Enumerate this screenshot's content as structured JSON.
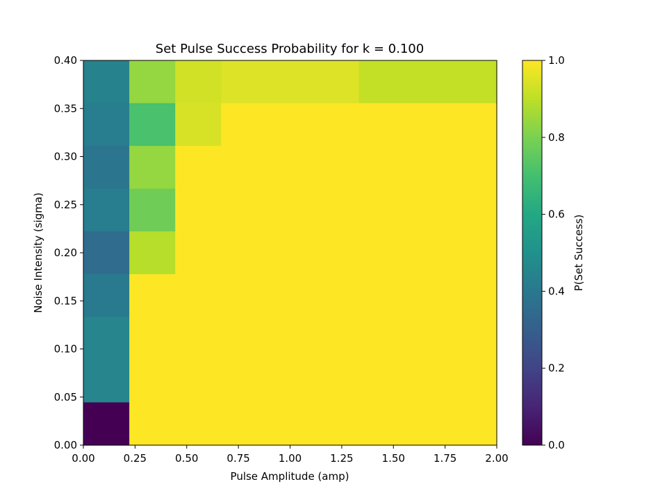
{
  "chart_data": {
    "type": "heatmap",
    "title": "Set Pulse Success Probability for k = 0.100",
    "xlabel": "Pulse Amplitude (amp)",
    "ylabel": "Noise Intensity (sigma)",
    "colorbar_label": "P(Set Success)",
    "colormap": "viridis",
    "x_range": [
      0.0,
      2.0
    ],
    "y_range": [
      0.0,
      0.4
    ],
    "color_range": [
      0.0,
      1.0
    ],
    "x_ticks": [
      "0.00",
      "0.25",
      "0.50",
      "0.75",
      "1.00",
      "1.25",
      "1.50",
      "1.75",
      "2.00"
    ],
    "y_ticks": [
      "0.00",
      "0.05",
      "0.10",
      "0.15",
      "0.20",
      "0.25",
      "0.30",
      "0.35",
      "0.40"
    ],
    "colorbar_ticks": [
      "0.0",
      "0.2",
      "0.4",
      "0.6",
      "0.8",
      "1.0"
    ],
    "n_cols": 9,
    "n_rows": 9,
    "values": [
      [
        0.44,
        0.84,
        0.93,
        0.95,
        0.95,
        0.95,
        0.91,
        0.91,
        0.91
      ],
      [
        0.42,
        0.71,
        0.94,
        1.0,
        1.0,
        1.0,
        1.0,
        1.0,
        1.0
      ],
      [
        0.39,
        0.84,
        1.0,
        1.0,
        1.0,
        1.0,
        1.0,
        1.0,
        1.0
      ],
      [
        0.42,
        0.78,
        1.0,
        1.0,
        1.0,
        1.0,
        1.0,
        1.0,
        1.0
      ],
      [
        0.35,
        0.89,
        1.0,
        1.0,
        1.0,
        1.0,
        1.0,
        1.0,
        1.0
      ],
      [
        0.41,
        1.0,
        1.0,
        1.0,
        1.0,
        1.0,
        1.0,
        1.0,
        1.0
      ],
      [
        0.45,
        1.0,
        1.0,
        1.0,
        1.0,
        1.0,
        1.0,
        1.0,
        1.0
      ],
      [
        0.45,
        1.0,
        1.0,
        1.0,
        1.0,
        1.0,
        1.0,
        1.0,
        1.0
      ],
      [
        0.0,
        1.0,
        1.0,
        1.0,
        1.0,
        1.0,
        1.0,
        1.0,
        1.0
      ]
    ]
  }
}
